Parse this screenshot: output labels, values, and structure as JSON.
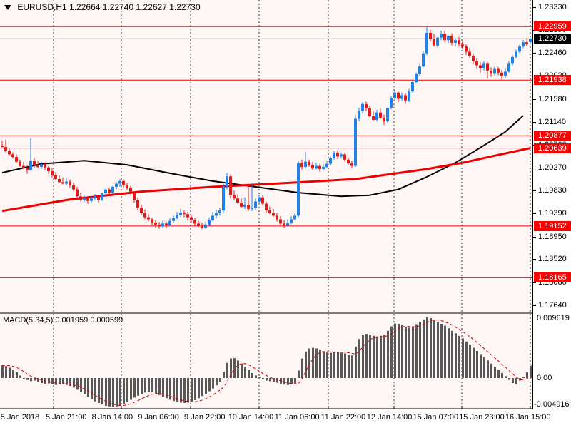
{
  "window_title": {
    "symbol": "EURUSD,H1",
    "open": "1.22664",
    "high": "1.22740",
    "low": "1.22627",
    "close": "1.22730"
  },
  "macd_panel": {
    "label": "MACD(5,34,5)",
    "macd_value": "0.001959",
    "signal_value": "0.000599",
    "axis_top": "0.009619",
    "axis_zero": "0.00",
    "axis_min": "-0.004916"
  },
  "colors": {
    "bull": "#1E82E8",
    "bear": "#E31A1A",
    "level_line": "#FF0000",
    "badge_level": "#FF0000",
    "badge_current": "#000000",
    "current_line": "#C4C4C4",
    "ma_red": "#EE0000",
    "ma_black": "#000000",
    "histogram": "#585858",
    "signal": "#CC0000",
    "chart_bg": "#FFF6F6",
    "grid": "#333333"
  },
  "chart_data": {
    "type": "candlestick",
    "title": "EURUSD,H1 1.22664 1.22740 1.22627 1.22730",
    "price_axis": {
      "max": 1.2333,
      "min": 1.1764,
      "ticks": [
        "1.23330",
        "1.22890",
        "1.22460",
        "1.22020",
        "1.21580",
        "1.21140",
        "1.20700",
        "1.20270",
        "1.19830",
        "1.19390",
        "1.18950",
        "1.18520",
        "1.18080",
        "1.17640"
      ],
      "tick_values": [
        1.2333,
        1.2289,
        1.2246,
        1.2202,
        1.2158,
        1.2114,
        1.207,
        1.2027,
        1.1983,
        1.1939,
        1.1895,
        1.1852,
        1.1808,
        1.1764
      ]
    },
    "level_lines": [
      {
        "label": "1.22959",
        "value": 1.22959
      },
      {
        "label": "1.21938",
        "value": 1.21938
      },
      {
        "label": "1.20877",
        "value": 1.20877
      },
      {
        "label": "1.20639",
        "value": 1.20639
      },
      {
        "label": "1.19152",
        "value": 1.19152
      },
      {
        "label": "1.18165",
        "value": 1.18165
      }
    ],
    "current_price": {
      "label": "1.22730",
      "value": 1.2273
    },
    "time_labels": [
      "5 Jan 2018",
      "5 Jan 21:00",
      "8 Jan 14:00",
      "9 Jan 06:00",
      "9 Jan 22:00",
      "10 Jan 14:00",
      "11 Jan 06:00",
      "11 Jan 22:00",
      "12 Jan 14:00",
      "15 Jan 07:00",
      "15 Jan 23:00",
      "16 Jan 15:00"
    ],
    "ohlc": [
      [
        1.2069,
        1.2078,
        1.2065,
        1.2066
      ],
      [
        1.2066,
        1.208,
        1.2055,
        1.2058
      ],
      [
        1.2058,
        1.2064,
        1.205,
        1.2052
      ],
      [
        1.2052,
        1.2056,
        1.2044,
        1.2047
      ],
      [
        1.2047,
        1.2052,
        1.2036,
        1.2038
      ],
      [
        1.2038,
        1.2042,
        1.2028,
        1.203
      ],
      [
        1.203,
        1.2038,
        1.2025,
        1.2026
      ],
      [
        1.2026,
        1.2031,
        1.2015,
        1.2022
      ],
      [
        1.2022,
        1.2083,
        1.202,
        1.204
      ],
      [
        1.204,
        1.2045,
        1.2026,
        1.2032
      ],
      [
        1.2032,
        1.204,
        1.2026,
        1.2028
      ],
      [
        1.2028,
        1.2038,
        1.2024,
        1.2033
      ],
      [
        1.2033,
        1.2037,
        1.2022,
        1.2027
      ],
      [
        1.2027,
        1.203,
        1.2015,
        1.202
      ],
      [
        1.202,
        1.2026,
        1.2008,
        1.2012
      ],
      [
        1.2012,
        1.2018,
        1.2002,
        1.2005
      ],
      [
        1.2005,
        1.2012,
        1.1998,
        1.1999
      ],
      [
        1.1999,
        1.2008,
        1.1995,
        1.1996
      ],
      [
        1.1996,
        1.2006,
        1.1993,
        1.2
      ],
      [
        1.2,
        1.2004,
        1.1989,
        1.1993
      ],
      [
        1.1993,
        1.1998,
        1.1982,
        1.1985
      ],
      [
        1.1985,
        1.199,
        1.1968,
        1.1972
      ],
      [
        1.1972,
        1.1979,
        1.1962,
        1.1965
      ],
      [
        1.1965,
        1.1975,
        1.1961,
        1.1968
      ],
      [
        1.1968,
        1.1972,
        1.1958,
        1.1963
      ],
      [
        1.1963,
        1.1971,
        1.196,
        1.1968
      ],
      [
        1.1968,
        1.1976,
        1.1965,
        1.1972
      ],
      [
        1.1972,
        1.1975,
        1.196,
        1.1965
      ],
      [
        1.1965,
        1.1979,
        1.1963,
        1.1978
      ],
      [
        1.1978,
        1.1987,
        1.1974,
        1.1985
      ],
      [
        1.1985,
        1.1988,
        1.1974,
        1.1979
      ],
      [
        1.1979,
        1.1992,
        1.1976,
        1.199
      ],
      [
        1.199,
        1.1999,
        1.1985,
        1.1996
      ],
      [
        1.1996,
        1.2005,
        1.199,
        1.2001
      ],
      [
        1.2001,
        1.2004,
        1.1989,
        1.1994
      ],
      [
        1.1994,
        1.1998,
        1.1984,
        1.1988
      ],
      [
        1.1988,
        1.1992,
        1.1974,
        1.1978
      ],
      [
        1.1978,
        1.1982,
        1.196,
        1.1965
      ],
      [
        1.1965,
        1.197,
        1.1945,
        1.195
      ],
      [
        1.195,
        1.1956,
        1.1936,
        1.194
      ],
      [
        1.194,
        1.1947,
        1.1928,
        1.1932
      ],
      [
        1.1932,
        1.1938,
        1.1924,
        1.1928
      ],
      [
        1.1928,
        1.1931,
        1.1917,
        1.1922
      ],
      [
        1.1922,
        1.1927,
        1.1912,
        1.1918
      ],
      [
        1.1918,
        1.1923,
        1.191,
        1.1915
      ],
      [
        1.1915,
        1.1926,
        1.1912,
        1.192
      ],
      [
        1.192,
        1.1924,
        1.1911,
        1.1917
      ],
      [
        1.1917,
        1.193,
        1.1915,
        1.1925
      ],
      [
        1.1925,
        1.1935,
        1.1922,
        1.193
      ],
      [
        1.193,
        1.1942,
        1.1928,
        1.1936
      ],
      [
        1.1936,
        1.1948,
        1.1933,
        1.1941
      ],
      [
        1.1941,
        1.1945,
        1.1932,
        1.1938
      ],
      [
        1.1938,
        1.1942,
        1.1926,
        1.1932
      ],
      [
        1.1932,
        1.1937,
        1.1922,
        1.1926
      ],
      [
        1.1926,
        1.193,
        1.1915,
        1.192
      ],
      [
        1.192,
        1.1926,
        1.1913,
        1.1916
      ],
      [
        1.1916,
        1.1922,
        1.1909,
        1.1912
      ],
      [
        1.1912,
        1.1924,
        1.191,
        1.1918
      ],
      [
        1.1918,
        1.1932,
        1.1916,
        1.1926
      ],
      [
        1.1926,
        1.1942,
        1.1924,
        1.1935
      ],
      [
        1.1935,
        1.1946,
        1.193,
        1.194
      ],
      [
        1.194,
        1.195,
        1.1935,
        1.1945
      ],
      [
        1.1945,
        1.1996,
        1.194,
        1.199
      ],
      [
        1.199,
        1.2017,
        1.1985,
        1.201
      ],
      [
        1.201,
        1.2014,
        1.1968,
        1.1975
      ],
      [
        1.1975,
        1.1983,
        1.1965,
        1.1968
      ],
      [
        1.1968,
        1.1976,
        1.1958,
        1.196
      ],
      [
        1.196,
        1.1968,
        1.195,
        1.1952
      ],
      [
        1.1952,
        1.197,
        1.1948,
        1.1956
      ],
      [
        1.1956,
        1.1996,
        1.1944,
        1.1948
      ],
      [
        1.1948,
        1.1998,
        1.1944,
        1.195
      ],
      [
        1.195,
        1.1968,
        1.1946,
        1.1962
      ],
      [
        1.1962,
        1.1975,
        1.1958,
        1.197
      ],
      [
        1.197,
        1.1974,
        1.1954,
        1.1958
      ],
      [
        1.1958,
        1.1962,
        1.194,
        1.1945
      ],
      [
        1.1945,
        1.1952,
        1.1938,
        1.194
      ],
      [
        1.194,
        1.1948,
        1.1933,
        1.1935
      ],
      [
        1.1935,
        1.194,
        1.1924,
        1.1928
      ],
      [
        1.1928,
        1.1934,
        1.1918,
        1.192
      ],
      [
        1.192,
        1.1926,
        1.1912,
        1.1916
      ],
      [
        1.1916,
        1.1928,
        1.1914,
        1.1921
      ],
      [
        1.1921,
        1.1934,
        1.1919,
        1.1928
      ],
      [
        1.1928,
        1.194,
        1.1926,
        1.1935
      ],
      [
        1.1935,
        1.204,
        1.1932,
        1.2035
      ],
      [
        1.2035,
        1.2042,
        1.2023,
        1.2028
      ],
      [
        1.2028,
        1.2057,
        1.2025,
        1.2038
      ],
      [
        1.2038,
        1.2042,
        1.2028,
        1.2032
      ],
      [
        1.2032,
        1.2038,
        1.2022,
        1.2025
      ],
      [
        1.2025,
        1.2036,
        1.2023,
        1.203
      ],
      [
        1.203,
        1.2034,
        1.2019,
        1.2024
      ],
      [
        1.2024,
        1.2033,
        1.2021,
        1.2028
      ],
      [
        1.2028,
        1.204,
        1.2026,
        1.2034
      ],
      [
        1.2034,
        1.2048,
        1.2032,
        1.2045
      ],
      [
        1.2045,
        1.2059,
        1.2042,
        1.2055
      ],
      [
        1.2055,
        1.2058,
        1.2043,
        1.2048
      ],
      [
        1.2048,
        1.2056,
        1.2044,
        1.2052
      ],
      [
        1.2052,
        1.2055,
        1.2038,
        1.2042
      ],
      [
        1.2042,
        1.2046,
        1.2031,
        1.2035
      ],
      [
        1.2035,
        1.204,
        1.2025,
        1.203
      ],
      [
        1.203,
        1.2127,
        1.2028,
        1.212
      ],
      [
        1.212,
        1.214,
        1.2115,
        1.2135
      ],
      [
        1.2135,
        1.2152,
        1.213,
        1.2148
      ],
      [
        1.2148,
        1.2153,
        1.2135,
        1.214
      ],
      [
        1.214,
        1.2145,
        1.2123,
        1.2125
      ],
      [
        1.2125,
        1.2135,
        1.2115,
        1.2118
      ],
      [
        1.2118,
        1.2137,
        1.2115,
        1.2132
      ],
      [
        1.2132,
        1.2139,
        1.212,
        1.2122
      ],
      [
        1.2122,
        1.2128,
        1.2108,
        1.2115
      ],
      [
        1.2115,
        1.2142,
        1.2112,
        1.214
      ],
      [
        1.214,
        1.2163,
        1.2138,
        1.216
      ],
      [
        1.216,
        1.2175,
        1.2156,
        1.217
      ],
      [
        1.217,
        1.2174,
        1.2152,
        1.2158
      ],
      [
        1.2158,
        1.217,
        1.2154,
        1.2165
      ],
      [
        1.2165,
        1.2169,
        1.2148,
        1.2155
      ],
      [
        1.2155,
        1.2177,
        1.2152,
        1.2172
      ],
      [
        1.2172,
        1.2195,
        1.217,
        1.219
      ],
      [
        1.219,
        1.2208,
        1.2187,
        1.2205
      ],
      [
        1.2205,
        1.2225,
        1.2202,
        1.222
      ],
      [
        1.222,
        1.225,
        1.2218,
        1.2245
      ],
      [
        1.2245,
        1.2296,
        1.2242,
        1.2284
      ],
      [
        1.2284,
        1.229,
        1.2268,
        1.2272
      ],
      [
        1.2272,
        1.2282,
        1.2258,
        1.226
      ],
      [
        1.226,
        1.2276,
        1.2256,
        1.2275
      ],
      [
        1.2275,
        1.2288,
        1.227,
        1.2282
      ],
      [
        1.2282,
        1.2287,
        1.2266,
        1.227
      ],
      [
        1.227,
        1.228,
        1.2265,
        1.2278
      ],
      [
        1.2278,
        1.2283,
        1.226,
        1.2265
      ],
      [
        1.2265,
        1.2274,
        1.2258,
        1.227
      ],
      [
        1.227,
        1.2276,
        1.2258,
        1.2262
      ],
      [
        1.2262,
        1.2269,
        1.2253,
        1.2258
      ],
      [
        1.2258,
        1.2262,
        1.2242,
        1.2248
      ],
      [
        1.2248,
        1.2255,
        1.2236,
        1.224
      ],
      [
        1.224,
        1.2245,
        1.2224,
        1.223
      ],
      [
        1.223,
        1.2236,
        1.2215,
        1.2222
      ],
      [
        1.2222,
        1.2228,
        1.2208,
        1.2216
      ],
      [
        1.2216,
        1.223,
        1.2212,
        1.2225
      ],
      [
        1.2225,
        1.2228,
        1.2197,
        1.2212
      ],
      [
        1.2212,
        1.2218,
        1.22,
        1.2206
      ],
      [
        1.2206,
        1.222,
        1.2202,
        1.2215
      ],
      [
        1.2215,
        1.2219,
        1.2203,
        1.2208
      ],
      [
        1.2208,
        1.2213,
        1.2194,
        1.2202
      ],
      [
        1.2202,
        1.2216,
        1.2198,
        1.221
      ],
      [
        1.221,
        1.223,
        1.2208,
        1.2225
      ],
      [
        1.2225,
        1.2242,
        1.2222,
        1.2238
      ],
      [
        1.2238,
        1.2252,
        1.2235,
        1.2248
      ],
      [
        1.2248,
        1.2262,
        1.2245,
        1.2258
      ],
      [
        1.2258,
        1.227,
        1.2255,
        1.2266
      ],
      [
        1.2266,
        1.2274,
        1.2259,
        1.2262
      ],
      [
        1.22664,
        1.2274,
        1.22627,
        1.2273
      ]
    ],
    "ma_red_points": [
      [
        0,
        1.1944
      ],
      [
        19,
        1.1966
      ],
      [
        39,
        1.1981
      ],
      [
        59,
        1.199
      ],
      [
        79,
        1.1997
      ],
      [
        99,
        1.2005
      ],
      [
        119,
        1.2024
      ],
      [
        129,
        1.2036
      ],
      [
        139,
        1.2051
      ],
      [
        148,
        1.2064
      ]
    ],
    "ma_black_points": [
      [
        0,
        1.2017
      ],
      [
        11,
        1.2034
      ],
      [
        23,
        1.204
      ],
      [
        35,
        1.2032
      ],
      [
        47,
        1.2016
      ],
      [
        59,
        1.2001
      ],
      [
        71,
        1.199
      ],
      [
        83,
        1.1979
      ],
      [
        95,
        1.1972
      ],
      [
        103,
        1.1974
      ],
      [
        111,
        1.1985
      ],
      [
        119,
        1.2009
      ],
      [
        127,
        1.2036
      ],
      [
        135,
        1.2069
      ],
      [
        141,
        1.2095
      ],
      [
        146,
        1.2126
      ]
    ],
    "macd": {
      "params": "5,34,5",
      "axis_max": 0.009619,
      "axis_min": -0.004916,
      "histogram": [
        0.002,
        0.0019,
        0.00165,
        0.00135,
        0.0009,
        0.0004,
        -0.0001,
        -0.0003,
        -0.0005,
        -0.0004,
        -0.0006,
        -0.0008,
        -0.0009,
        -0.00085,
        -0.001,
        -0.0011,
        -0.001,
        -0.00095,
        -0.0011,
        -0.00125,
        -0.0015,
        -0.00185,
        -0.0022,
        -0.0026,
        -0.003,
        -0.0034,
        -0.0037,
        -0.00395,
        -0.0042,
        -0.0044,
        -0.0045,
        -0.00455,
        -0.0045,
        -0.00435,
        -0.0041,
        -0.0038,
        -0.00345,
        -0.0031,
        -0.0028,
        -0.00255,
        -0.0023,
        -0.00215,
        -0.00225,
        -0.00245,
        -0.0027,
        -0.00295,
        -0.0032,
        -0.00345,
        -0.00365,
        -0.0038,
        -0.0039,
        -0.00395,
        -0.0039,
        -0.00375,
        -0.0035,
        -0.0032,
        -0.00285,
        -0.0025,
        -0.0021,
        -0.00165,
        -0.00115,
        -0.0006,
        0.001,
        0.0024,
        0.0031,
        0.00315,
        0.0028,
        0.0023,
        0.0018,
        0.0013,
        0.0008,
        0.0004,
        0.0001,
        -0.0002,
        -0.0004,
        -0.0005,
        -0.0006,
        -0.00075,
        -0.0009,
        -0.00105,
        -0.0011,
        -0.001,
        -0.00085,
        0.0012,
        0.0031,
        0.0042,
        0.0047,
        0.0048,
        0.0047,
        0.0045,
        0.00425,
        0.00405,
        0.004,
        0.0041,
        0.00415,
        0.00405,
        0.0039,
        0.0037,
        0.0036,
        0.005,
        0.0062,
        0.0068,
        0.007,
        0.0069,
        0.0067,
        0.0066,
        0.0067,
        0.0069,
        0.0075,
        0.0082,
        0.00865,
        0.0086,
        0.0084,
        0.0081,
        0.008,
        0.0082,
        0.00855,
        0.0089,
        0.0093,
        0.00962,
        0.0095,
        0.0092,
        0.0089,
        0.0086,
        0.0083,
        0.0079,
        0.0075,
        0.0071,
        0.0067,
        0.0063,
        0.0058,
        0.0053,
        0.0048,
        0.0043,
        0.0038,
        0.0033,
        0.0028,
        0.0023,
        0.0018,
        0.0013,
        0.0008,
        0.0003,
        -0.0003,
        -0.0008,
        -0.001,
        -0.0004,
        0.0002,
        0.0009,
        0.00196
      ]
    }
  }
}
